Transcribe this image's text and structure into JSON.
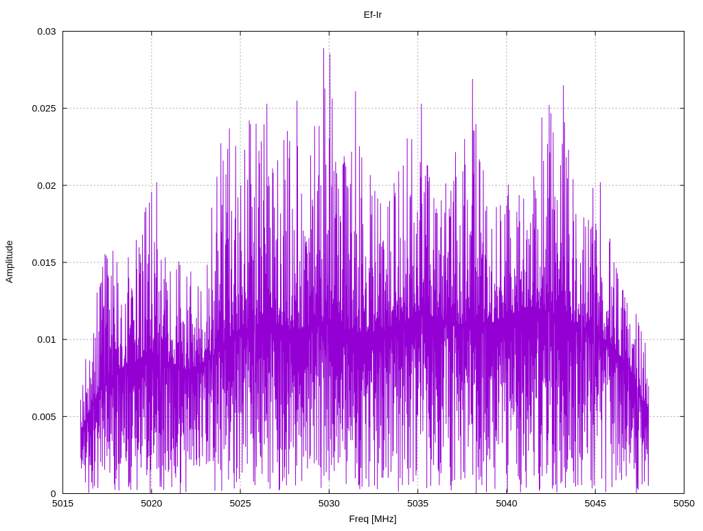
{
  "chart_data": {
    "type": "line",
    "title": "Ef-Ir",
    "xlabel": "Freq [MHz]",
    "ylabel": "Amplitude",
    "xlim": [
      5015,
      5050
    ],
    "ylim": [
      0,
      0.03
    ],
    "x_ticks": [
      "5015",
      "5020",
      "5025",
      "5030",
      "5035",
      "5040",
      "5045",
      "5050"
    ],
    "x_tick_values": [
      5015,
      5020,
      5025,
      5030,
      5035,
      5040,
      5045,
      5050
    ],
    "y_ticks": [
      "0",
      "0.005",
      "0.01",
      "0.015",
      "0.02",
      "0.025",
      "0.03"
    ],
    "y_tick_values": [
      0,
      0.005,
      0.01,
      0.015,
      0.02,
      0.025,
      0.03
    ],
    "grid": true,
    "series": [
      {
        "color": "#9400d3",
        "x_range": [
          5016.0,
          5048.0
        ],
        "approx_envelope": {
          "x": [
            5016,
            5017,
            5018,
            5019,
            5020,
            5021,
            5022,
            5023,
            5024,
            5025,
            5026,
            5027,
            5028,
            5029,
            5030,
            5031,
            5032,
            5033,
            5034,
            5035,
            5036,
            5037,
            5038,
            5039,
            5040,
            5041,
            5042,
            5043,
            5044,
            5045,
            5046,
            5047,
            5048
          ],
          "mean": [
            0.004,
            0.0065,
            0.008,
            0.0085,
            0.009,
            0.0085,
            0.008,
            0.0085,
            0.0095,
            0.0105,
            0.011,
            0.011,
            0.0105,
            0.011,
            0.011,
            0.0105,
            0.0105,
            0.0105,
            0.011,
            0.0115,
            0.0115,
            0.011,
            0.011,
            0.011,
            0.0115,
            0.012,
            0.012,
            0.0115,
            0.011,
            0.0105,
            0.0095,
            0.008,
            0.005
          ],
          "peak": [
            0.0065,
            0.015,
            0.0178,
            0.016,
            0.0202,
            0.0165,
            0.0145,
            0.016,
            0.0237,
            0.0235,
            0.0253,
            0.0215,
            0.0255,
            0.0229,
            0.0289,
            0.0261,
            0.0215,
            0.019,
            0.0222,
            0.0253,
            0.0195,
            0.0225,
            0.0269,
            0.0195,
            0.02,
            0.021,
            0.0244,
            0.0265,
            0.019,
            0.0202,
            0.0165,
            0.0135,
            0.009
          ]
        },
        "notable_peaks": [
          {
            "x": 5029.7,
            "y": 0.0289
          },
          {
            "x": 5038.1,
            "y": 0.0269
          },
          {
            "x": 5043.2,
            "y": 0.0265
          },
          {
            "x": 5031.5,
            "y": 0.0261
          },
          {
            "x": 5028.2,
            "y": 0.0255
          },
          {
            "x": 5026.5,
            "y": 0.0253
          },
          {
            "x": 5035.2,
            "y": 0.0253
          },
          {
            "x": 5042.0,
            "y": 0.0244
          },
          {
            "x": 5025.9,
            "y": 0.024
          },
          {
            "x": 5024.4,
            "y": 0.0237
          },
          {
            "x": 5020.3,
            "y": 0.0202
          },
          {
            "x": 5045.3,
            "y": 0.0202
          }
        ]
      }
    ]
  }
}
